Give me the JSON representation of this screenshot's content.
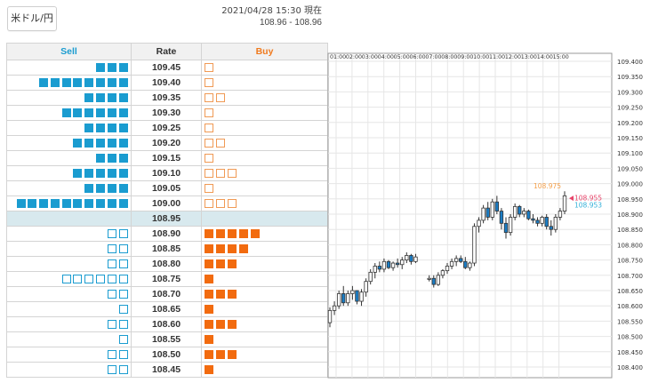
{
  "pair_selector": {
    "label": "米ドル/円"
  },
  "quote": {
    "timestamp": "2021/04/28 15:30 現在",
    "range": "108.96 - 108.96"
  },
  "order_book": {
    "headers": {
      "sell": "Sell",
      "rate": "Rate",
      "buy": "Buy"
    },
    "current_rate": "108.95",
    "rows": [
      {
        "rate": "109.45",
        "sell_filled": 3,
        "sell_empty": 0,
        "buy_filled": 0,
        "buy_empty": 1
      },
      {
        "rate": "109.40",
        "sell_filled": 8,
        "sell_empty": 0,
        "buy_filled": 0,
        "buy_empty": 1
      },
      {
        "rate": "109.35",
        "sell_filled": 4,
        "sell_empty": 0,
        "buy_filled": 0,
        "buy_empty": 2
      },
      {
        "rate": "109.30",
        "sell_filled": 6,
        "sell_empty": 0,
        "buy_filled": 0,
        "buy_empty": 1
      },
      {
        "rate": "109.25",
        "sell_filled": 4,
        "sell_empty": 0,
        "buy_filled": 0,
        "buy_empty": 1
      },
      {
        "rate": "109.20",
        "sell_filled": 5,
        "sell_empty": 0,
        "buy_filled": 0,
        "buy_empty": 2
      },
      {
        "rate": "109.15",
        "sell_filled": 3,
        "sell_empty": 0,
        "buy_filled": 0,
        "buy_empty": 1
      },
      {
        "rate": "109.10",
        "sell_filled": 5,
        "sell_empty": 0,
        "buy_filled": 0,
        "buy_empty": 3
      },
      {
        "rate": "109.05",
        "sell_filled": 4,
        "sell_empty": 0,
        "buy_filled": 0,
        "buy_empty": 1
      },
      {
        "rate": "109.00",
        "sell_filled": 10,
        "sell_empty": 0,
        "buy_filled": 0,
        "buy_empty": 3
      },
      {
        "rate": "108.95",
        "sell_filled": 0,
        "sell_empty": 0,
        "buy_filled": 0,
        "buy_empty": 0,
        "current": true
      },
      {
        "rate": "108.90",
        "sell_filled": 0,
        "sell_empty": 2,
        "buy_filled": 5,
        "buy_empty": 0
      },
      {
        "rate": "108.85",
        "sell_filled": 0,
        "sell_empty": 2,
        "buy_filled": 4,
        "buy_empty": 0
      },
      {
        "rate": "108.80",
        "sell_filled": 0,
        "sell_empty": 2,
        "buy_filled": 3,
        "buy_empty": 0
      },
      {
        "rate": "108.75",
        "sell_filled": 0,
        "sell_empty": 6,
        "buy_filled": 1,
        "buy_empty": 0
      },
      {
        "rate": "108.70",
        "sell_filled": 0,
        "sell_empty": 2,
        "buy_filled": 3,
        "buy_empty": 0
      },
      {
        "rate": "108.65",
        "sell_filled": 0,
        "sell_empty": 1,
        "buy_filled": 1,
        "buy_empty": 0
      },
      {
        "rate": "108.60",
        "sell_filled": 0,
        "sell_empty": 2,
        "buy_filled": 3,
        "buy_empty": 0
      },
      {
        "rate": "108.55",
        "sell_filled": 0,
        "sell_empty": 1,
        "buy_filled": 1,
        "buy_empty": 0
      },
      {
        "rate": "108.50",
        "sell_filled": 0,
        "sell_empty": 2,
        "buy_filled": 3,
        "buy_empty": 0
      },
      {
        "rate": "108.45",
        "sell_filled": 0,
        "sell_empty": 2,
        "buy_filled": 1,
        "buy_empty": 0
      }
    ]
  },
  "colors": {
    "sell": "#1a9cd0",
    "buy": "#f26b0f",
    "current_row": "#d8e9ee",
    "candle_up": "#ffffff",
    "candle_down": "#1a7cc4",
    "high_label": "#f5a04a",
    "ask_marker": "#e8446a",
    "bid_marker": "#33b0d8"
  },
  "chart_data": {
    "type": "candlestick",
    "x_ticks": [
      "01:00",
      "02:00",
      "03:00",
      "04:00",
      "05:00",
      "06:00",
      "07:00",
      "08:00",
      "09:00",
      "10:00",
      "11:00",
      "12:00",
      "13:00",
      "14:00",
      "15:00"
    ],
    "y_ticks": [
      "109.400",
      "109.350",
      "109.300",
      "109.250",
      "109.200",
      "109.150",
      "109.100",
      "109.050",
      "109.000",
      "108.950",
      "108.900",
      "108.850",
      "108.800",
      "108.750",
      "108.700",
      "108.650",
      "108.600",
      "108.550",
      "108.500",
      "108.450",
      "108.400"
    ],
    "ylim": [
      108.4,
      109.4
    ],
    "grid": true,
    "candles": [
      [
        108.545,
        108.595,
        108.53,
        108.585
      ],
      [
        108.585,
        108.615,
        108.57,
        108.6
      ],
      [
        108.6,
        108.65,
        108.59,
        108.64
      ],
      [
        108.64,
        108.665,
        108.6,
        108.61
      ],
      [
        108.61,
        108.65,
        108.6,
        108.64
      ],
      [
        108.64,
        108.665,
        108.62,
        108.65
      ],
      [
        108.65,
        108.64,
        108.605,
        108.615
      ],
      [
        108.615,
        108.655,
        108.6,
        108.645
      ],
      [
        108.645,
        108.69,
        108.63,
        108.68
      ],
      [
        108.68,
        108.72,
        108.67,
        108.71
      ],
      [
        108.71,
        108.74,
        108.69,
        108.73
      ],
      [
        108.73,
        108.745,
        108.71,
        108.72
      ],
      [
        108.72,
        108.755,
        108.71,
        108.745
      ],
      [
        108.745,
        108.75,
        108.72,
        108.725
      ],
      [
        108.725,
        108.745,
        108.715,
        108.74
      ],
      [
        108.74,
        108.755,
        108.725,
        108.735
      ],
      [
        108.735,
        108.76,
        108.72,
        108.75
      ],
      [
        108.75,
        108.775,
        108.74,
        108.765
      ],
      [
        108.765,
        108.77,
        108.735,
        108.745
      ],
      [
        108.745,
        108.77,
        108.74,
        108.76
      ],
      [
        null,
        null,
        null,
        null
      ],
      [
        null,
        null,
        null,
        null
      ],
      [
        108.69,
        108.7,
        108.68,
        108.69
      ],
      [
        108.69,
        108.7,
        108.66,
        108.67
      ],
      [
        108.67,
        108.71,
        108.665,
        108.7
      ],
      [
        108.7,
        108.72,
        108.69,
        108.715
      ],
      [
        108.715,
        108.74,
        108.705,
        108.73
      ],
      [
        108.73,
        108.755,
        108.72,
        108.745
      ],
      [
        108.745,
        108.765,
        108.73,
        108.755
      ],
      [
        108.755,
        108.765,
        108.74,
        108.745
      ],
      [
        108.745,
        108.76,
        108.72,
        108.725
      ],
      [
        108.725,
        108.745,
        108.715,
        108.74
      ],
      [
        108.74,
        108.87,
        108.73,
        108.86
      ],
      [
        108.86,
        108.89,
        108.84,
        108.88
      ],
      [
        108.88,
        108.93,
        108.87,
        108.92
      ],
      [
        108.92,
        108.94,
        108.88,
        108.89
      ],
      [
        108.89,
        108.95,
        108.88,
        108.94
      ],
      [
        108.94,
        108.96,
        108.9,
        108.91
      ],
      [
        108.91,
        108.92,
        108.85,
        108.87
      ],
      [
        108.87,
        108.89,
        108.82,
        108.84
      ],
      [
        108.84,
        108.9,
        108.83,
        108.89
      ],
      [
        108.89,
        108.935,
        108.88,
        108.925
      ],
      [
        108.925,
        108.93,
        108.89,
        108.9
      ],
      [
        108.9,
        108.92,
        108.89,
        108.91
      ],
      [
        108.91,
        108.915,
        108.88,
        108.885
      ],
      [
        108.885,
        108.9,
        108.87,
        108.88
      ],
      [
        108.88,
        108.89,
        108.86,
        108.87
      ],
      [
        108.87,
        108.895,
        108.86,
        108.89
      ],
      [
        108.89,
        108.9,
        108.85,
        108.86
      ],
      [
        108.86,
        108.88,
        108.83,
        108.85
      ],
      [
        108.85,
        108.9,
        108.84,
        108.89
      ],
      [
        108.89,
        108.92,
        108.88,
        108.91
      ],
      [
        108.91,
        108.975,
        108.9,
        108.96
      ]
    ],
    "high_marker": "108.975",
    "ask_marker": "108.955",
    "bid_marker": "108.953"
  }
}
